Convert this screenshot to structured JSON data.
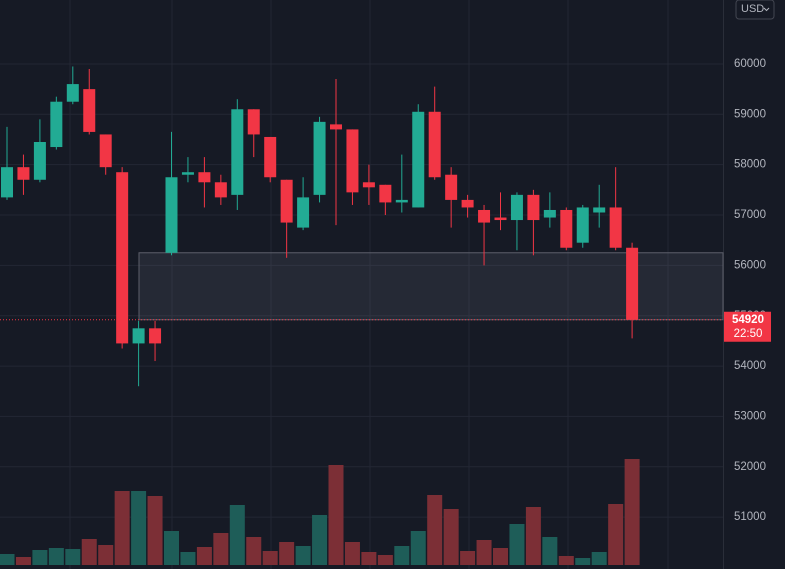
{
  "chart_data": {
    "type": "candlestick",
    "currency": "USD",
    "ylim": [
      49970,
      61270
    ],
    "yticks": [
      51000,
      52000,
      53000,
      54000,
      55000,
      56000,
      57000,
      58000,
      59000,
      60000
    ],
    "up_color": "#22ab94",
    "down_color": "#f23645",
    "volume_up_color": "#1e5d58",
    "volume_down_color": "#7c2f36",
    "volume_lim": [
      0,
      120
    ],
    "ohlc": [
      [
        57350,
        58750,
        57300,
        57950
      ],
      [
        57950,
        58200,
        57400,
        57700
      ],
      [
        57700,
        58900,
        57650,
        58450
      ],
      [
        58350,
        59350,
        58300,
        59250
      ],
      [
        59250,
        59950,
        59200,
        59600
      ],
      [
        59500,
        59900,
        58600,
        58650
      ],
      [
        58600,
        58600,
        57800,
        57950
      ],
      [
        57850,
        57950,
        54350,
        54450
      ],
      [
        54450,
        54900,
        53600,
        54750
      ],
      [
        54750,
        54900,
        54100,
        54450
      ],
      [
        56250,
        58650,
        56200,
        57750
      ],
      [
        57800,
        58150,
        57650,
        57850
      ],
      [
        57850,
        58150,
        57150,
        57650
      ],
      [
        57650,
        57800,
        57200,
        57350
      ],
      [
        57400,
        59300,
        57100,
        59100
      ],
      [
        59100,
        59100,
        58150,
        58600
      ],
      [
        58550,
        58550,
        57650,
        57750
      ],
      [
        57700,
        57700,
        56150,
        56850
      ],
      [
        56750,
        57750,
        56700,
        57350
      ],
      [
        57400,
        58950,
        57250,
        58850
      ],
      [
        58800,
        59700,
        56800,
        58700
      ],
      [
        58700,
        58700,
        57200,
        57450
      ],
      [
        57650,
        58000,
        57200,
        57550
      ],
      [
        57600,
        57600,
        57000,
        57250
      ],
      [
        57250,
        58200,
        57050,
        57300
      ],
      [
        57150,
        59200,
        57150,
        59050
      ],
      [
        59050,
        59550,
        57700,
        57750
      ],
      [
        57800,
        57950,
        56750,
        57300
      ],
      [
        57300,
        57400,
        56950,
        57150
      ],
      [
        57100,
        57200,
        56000,
        56850
      ],
      [
        56950,
        57450,
        56700,
        56900
      ],
      [
        56900,
        57450,
        56300,
        57400
      ],
      [
        57400,
        57500,
        56200,
        56900
      ],
      [
        56950,
        57450,
        56750,
        57100
      ],
      [
        57100,
        57150,
        56300,
        56350
      ],
      [
        56450,
        57200,
        56350,
        57150
      ],
      [
        57050,
        57600,
        56750,
        57150
      ],
      [
        57150,
        57950,
        56300,
        56350
      ],
      [
        56350,
        56450,
        54550,
        54920
      ]
    ],
    "volume": [
      11,
      8,
      15,
      17,
      16,
      26,
      20,
      74,
      74,
      69,
      34,
      13,
      18,
      32,
      60,
      28,
      14,
      23,
      19,
      50,
      100,
      23,
      13,
      10,
      19,
      34,
      70,
      56,
      14,
      25,
      17,
      41,
      58,
      28,
      9,
      7,
      13,
      61,
      106
    ],
    "zone": [
      54920,
      56250
    ],
    "last_price": 54920,
    "countdown": "22:50"
  }
}
